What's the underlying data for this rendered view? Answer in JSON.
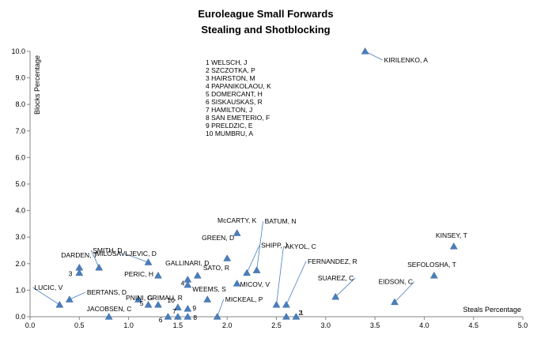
{
  "chart_data": {
    "type": "scatter",
    "title": "Euroleague Small Forwards",
    "subtitle": "Stealing and Shotblocking",
    "xlabel": "Steals Percentage",
    "ylabel": "Blocks Percentage",
    "xlim": [
      0,
      5
    ],
    "ylim": [
      0,
      10
    ],
    "x_ticks": [
      "0.0",
      "0.5",
      "1.0",
      "1.5",
      "2.0",
      "2.5",
      "3.0",
      "3.5",
      "4.0",
      "4.5",
      "5.0"
    ],
    "y_ticks": [
      "0.0",
      "1.0",
      "2.0",
      "3.0",
      "4.0",
      "5.0",
      "6.0",
      "7.0",
      "8.0",
      "9.0",
      "10.0"
    ],
    "grid": false,
    "marker_color": "#4a7ebb",
    "points": [
      {
        "label": "KIRILENKO, A",
        "x": 3.4,
        "y": 10.0
      },
      {
        "label": "KINSEY, T",
        "x": 4.3,
        "y": 2.65
      },
      {
        "label": "SEFOLOSHA, T",
        "x": 4.1,
        "y": 1.55
      },
      {
        "label": "EIDSON, C",
        "x": 3.7,
        "y": 0.55
      },
      {
        "label": "SUAREZ, C",
        "x": 3.1,
        "y": 0.75
      },
      {
        "label": "FERNANDEZ, R",
        "x": 2.6,
        "y": 0.45
      },
      {
        "label": "AKYOL, C",
        "x": 2.5,
        "y": 0.45
      },
      {
        "label": "BATUM, N",
        "x": 2.3,
        "y": 1.75
      },
      {
        "label": "SHIPP, J",
        "x": 2.2,
        "y": 1.65
      },
      {
        "label": "McCARTY, K",
        "x": 2.1,
        "y": 3.15
      },
      {
        "label": "GREEN, D",
        "x": 2.0,
        "y": 2.2
      },
      {
        "label": "MICOV, V",
        "x": 2.1,
        "y": 1.25
      },
      {
        "label": "MICKEAL, P",
        "x": 1.9,
        "y": 0.0
      },
      {
        "label": "SATO, R",
        "x": 1.7,
        "y": 1.55
      },
      {
        "label": "WEEMS, S",
        "x": 1.8,
        "y": 0.65
      },
      {
        "label": "GALLINARI, D",
        "x": 1.6,
        "y": 1.4
      },
      {
        "label": "MILOSAVLJEVIC, D",
        "x": 1.2,
        "y": 2.05
      },
      {
        "label": "PERIC, H",
        "x": 1.3,
        "y": 1.55
      },
      {
        "label": "PNINI, G",
        "x": 1.1,
        "y": 0.65
      },
      {
        "label": "GRIMAU, R",
        "x": 1.3,
        "y": 0.45
      },
      {
        "label": "SMITH, D",
        "x": 0.7,
        "y": 1.85
      },
      {
        "label": "DARDEN, T",
        "x": 0.5,
        "y": 1.85
      },
      {
        "label": "BERTANS, D",
        "x": 0.4,
        "y": 0.65
      },
      {
        "label": "LUCIC, V",
        "x": 0.3,
        "y": 0.45
      },
      {
        "label": "JACOBSEN, C",
        "x": 0.8,
        "y": 0.0
      },
      {
        "label": "1",
        "x": 2.6,
        "y": 0.0
      },
      {
        "label": "2",
        "x": 2.7,
        "y": 0.0
      },
      {
        "label": "3",
        "x": 0.5,
        "y": 1.65
      },
      {
        "label": "4",
        "x": 1.6,
        "y": 1.2
      },
      {
        "label": "5",
        "x": 1.2,
        "y": 0.45
      },
      {
        "label": "6",
        "x": 1.4,
        "y": 0.0
      },
      {
        "label": "7",
        "x": 1.5,
        "y": 0.0
      },
      {
        "label": "8",
        "x": 1.6,
        "y": 0.0
      },
      {
        "label": "9",
        "x": 1.6,
        "y": 0.3
      },
      {
        "label": "10",
        "x": 1.5,
        "y": 0.35
      }
    ],
    "legend": [
      "1 WELSCH, J",
      "2 SZCZOTKA, P",
      "3 HAIRSTON, M",
      "4 PAPANIKOLAOU, K",
      "5 DOMERCANT, H",
      "6 SISKAUSKAS, R",
      "7 HAMILTON, J",
      "8 SAN EMETERIO, F",
      "9 PRELDZIC, E",
      "10 MUMBRU, A"
    ]
  }
}
